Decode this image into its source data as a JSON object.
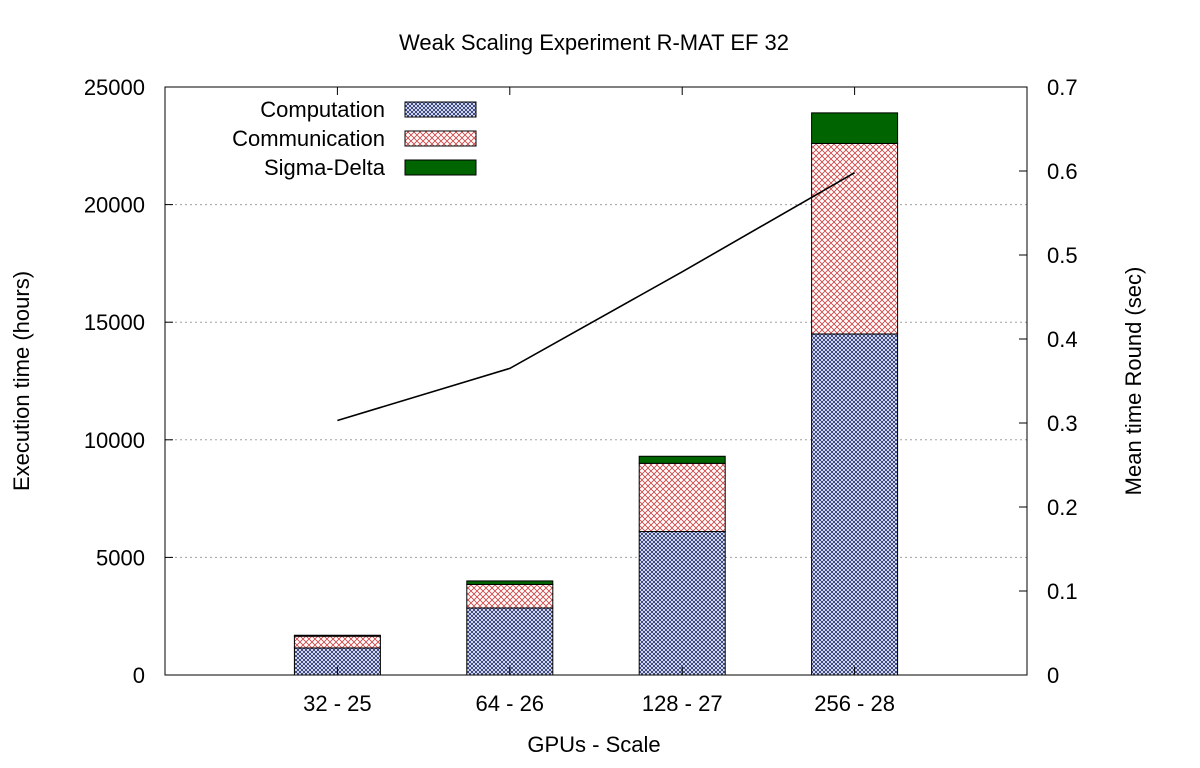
{
  "chart_data": {
    "type": "bar",
    "subtype": "stacked-bar-with-line",
    "title": "Weak Scaling Experiment R-MAT EF 32",
    "xlabel": "GPUs - Scale",
    "ylabel": "Execution time (hours)",
    "y2label": "Mean time Round (sec)",
    "categories": [
      "32 - 25",
      "64 - 26",
      "128 - 27",
      "256 - 28"
    ],
    "ylim": [
      0,
      25000
    ],
    "y2lim": [
      0,
      0.7
    ],
    "yticks": [
      0,
      5000,
      10000,
      15000,
      20000,
      25000
    ],
    "y2ticks": [
      0,
      0.1,
      0.2,
      0.3,
      0.4,
      0.5,
      0.6,
      0.7
    ],
    "grid": "horizontal dotted",
    "legend_position": "top-left",
    "series": [
      {
        "name": "Computation",
        "values": [
          1150,
          2850,
          6100,
          14500
        ],
        "color": "#1f2f7a",
        "pattern": "crosshatch-blue"
      },
      {
        "name": "Communication",
        "values": [
          500,
          1000,
          2900,
          8100
        ],
        "color": "#d04040",
        "pattern": "crosshatch-red"
      },
      {
        "name": "Sigma-Delta",
        "values": [
          40,
          150,
          300,
          1300
        ],
        "color": "#006400",
        "pattern": "solid"
      }
    ],
    "line_series": {
      "name": "Mean time Round",
      "axis": "right",
      "values": [
        0.303,
        0.365,
        0.48,
        0.598
      ],
      "color": "#000000"
    }
  }
}
